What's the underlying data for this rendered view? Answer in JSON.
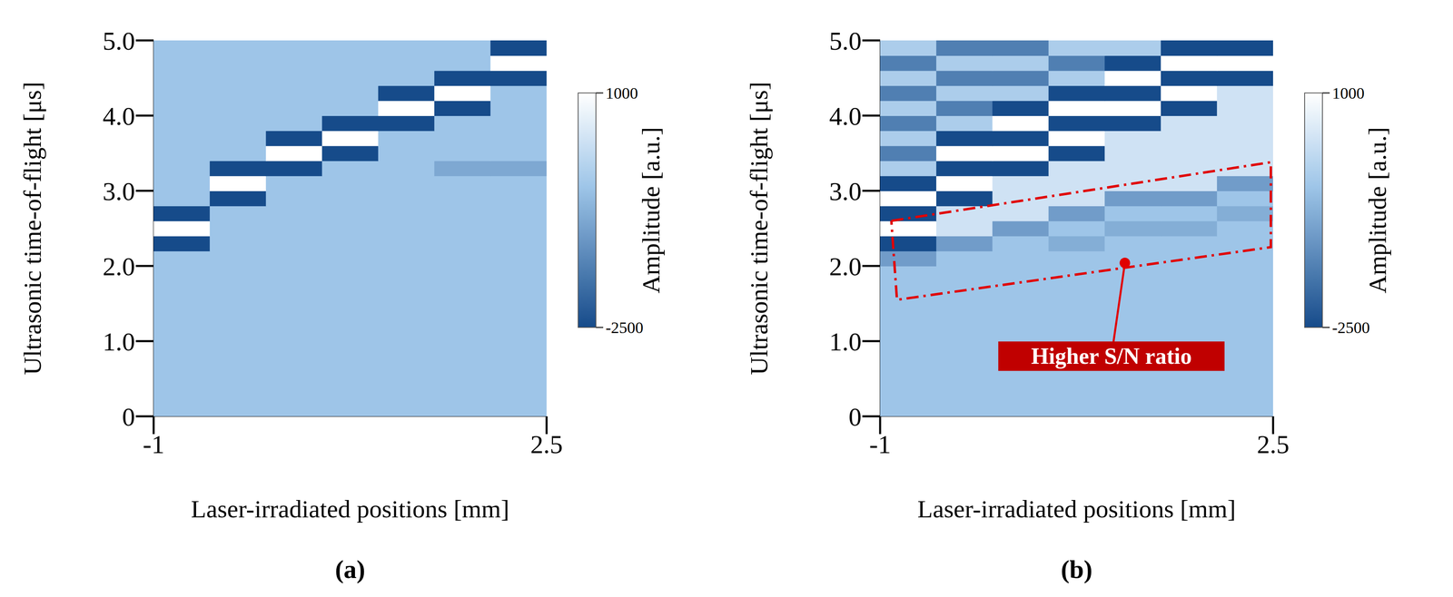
{
  "chart_data": [
    {
      "type": "heatmap",
      "title": "(a)",
      "x_label": "Laser-irradiated positions [mm]",
      "y_label": "Ultrasonic time-of-flight [μs]",
      "xlim": [
        -1,
        2.5
      ],
      "xticks": [
        -1,
        2.5
      ],
      "ylim": [
        0,
        5
      ],
      "yticks": [
        0,
        {
          "value": 1,
          "label": "1.0"
        },
        {
          "value": 2,
          "label": "2.0"
        },
        {
          "value": 3,
          "label": "3.0"
        },
        {
          "value": 4,
          "label": "4.0"
        },
        {
          "value": 5,
          "label": "5.0"
        }
      ],
      "x": [
        -0.75,
        -0.25,
        0.25,
        0.75,
        1.25,
        1.75,
        2.25
      ],
      "y": [
        0.1,
        0.3,
        0.5,
        0.7,
        0.9,
        1.1,
        1.3,
        1.5,
        1.7,
        1.9,
        2.1,
        2.3,
        2.5,
        2.7,
        2.9,
        3.1,
        3.3,
        3.5,
        3.7,
        3.9,
        4.1,
        4.3,
        4.5,
        4.7,
        4.9
      ],
      "cells": [
        [
          -400,
          -400,
          -400,
          -400,
          -400,
          -400,
          -400
        ],
        [
          -400,
          -400,
          -400,
          -400,
          -400,
          -400,
          -400
        ],
        [
          -400,
          -400,
          -400,
          -400,
          -400,
          -400,
          -400
        ],
        [
          -400,
          -400,
          -400,
          -400,
          -400,
          -400,
          -400
        ],
        [
          -400,
          -400,
          -400,
          -400,
          -400,
          -400,
          -400
        ],
        [
          -400,
          -400,
          -400,
          -400,
          -400,
          -400,
          -400
        ],
        [
          -400,
          -400,
          -400,
          -400,
          -400,
          -400,
          -400
        ],
        [
          -400,
          -400,
          -400,
          -400,
          -400,
          -400,
          -400
        ],
        [
          -400,
          -400,
          -400,
          -400,
          -400,
          -400,
          -400
        ],
        [
          -400,
          -400,
          -400,
          -400,
          -400,
          -400,
          -400
        ],
        [
          -400,
          -400,
          -400,
          -400,
          -400,
          -400,
          -400
        ],
        [
          -2500,
          -400,
          -400,
          -400,
          -400,
          -400,
          -400
        ],
        [
          1000,
          -400,
          -400,
          -400,
          -400,
          -400,
          -400
        ],
        [
          -2500,
          -400,
          -400,
          -400,
          -400,
          -400,
          -400
        ],
        [
          -400,
          -2500,
          -400,
          -400,
          -400,
          -400,
          -400
        ],
        [
          -400,
          1000,
          -400,
          -400,
          -400,
          -400,
          -400
        ],
        [
          -400,
          -2500,
          -2500,
          -400,
          -400,
          -900,
          -900
        ],
        [
          -400,
          -400,
          1000,
          -2500,
          -400,
          -400,
          -400
        ],
        [
          -400,
          -400,
          -2500,
          1000,
          -400,
          -400,
          -400
        ],
        [
          -400,
          -400,
          -400,
          -2500,
          -2500,
          -400,
          -400
        ],
        [
          -400,
          -400,
          -400,
          -400,
          1000,
          -2500,
          -400
        ],
        [
          -400,
          -400,
          -400,
          -400,
          -2500,
          1000,
          -400
        ],
        [
          -400,
          -400,
          -400,
          -400,
          -400,
          -2500,
          -2500
        ],
        [
          -400,
          -400,
          -400,
          -400,
          -400,
          -400,
          1000
        ],
        [
          -400,
          -400,
          -400,
          -400,
          -400,
          -400,
          -2500
        ]
      ],
      "colorbar": {
        "label": "Amplitude [a.u.]",
        "range": [
          -2500,
          1000
        ],
        "ticks": [
          -2500,
          1000
        ]
      }
    },
    {
      "type": "heatmap",
      "title": "(b)",
      "x_label": "Laser-irradiated positions [mm]",
      "y_label": "Ultrasonic time-of-flight [μs]",
      "xlim": [
        -1,
        2.5
      ],
      "xticks": [
        -1,
        2.5
      ],
      "ylim": [
        0,
        5
      ],
      "yticks": [
        0,
        {
          "value": 1,
          "label": "1.0"
        },
        {
          "value": 2,
          "label": "2.0"
        },
        {
          "value": 3,
          "label": "3.0"
        },
        {
          "value": 4,
          "label": "4.0"
        },
        {
          "value": 5,
          "label": "5.0"
        }
      ],
      "x": [
        -0.75,
        -0.25,
        0.25,
        0.75,
        1.25,
        1.75,
        2.25
      ],
      "y": [
        0.1,
        0.3,
        0.5,
        0.7,
        0.9,
        1.1,
        1.3,
        1.5,
        1.7,
        1.9,
        2.1,
        2.3,
        2.5,
        2.7,
        2.9,
        3.1,
        3.3,
        3.5,
        3.7,
        3.9,
        4.1,
        4.3,
        4.5,
        4.7,
        4.9
      ],
      "cells": [
        [
          -400,
          -400,
          -400,
          -400,
          -400,
          -400,
          -400
        ],
        [
          -400,
          -400,
          -400,
          -400,
          -400,
          -400,
          -400
        ],
        [
          -400,
          -400,
          -400,
          -400,
          -400,
          -400,
          -400
        ],
        [
          -400,
          -400,
          -400,
          -400,
          -400,
          -400,
          -400
        ],
        [
          -400,
          -400,
          -400,
          -400,
          -400,
          -400,
          -400
        ],
        [
          -400,
          -400,
          -400,
          -400,
          -400,
          -400,
          -400
        ],
        [
          -400,
          -400,
          -400,
          -400,
          -400,
          -400,
          -400
        ],
        [
          -400,
          -400,
          -400,
          -400,
          -400,
          -400,
          -400
        ],
        [
          -400,
          -400,
          -400,
          -400,
          -400,
          -400,
          -400
        ],
        [
          -400,
          -400,
          -400,
          -400,
          -400,
          -400,
          -400
        ],
        [
          -1100,
          -400,
          -400,
          -400,
          -400,
          -400,
          -400
        ],
        [
          -2500,
          -1100,
          -400,
          -800,
          -400,
          -400,
          -400
        ],
        [
          1000,
          300,
          -1100,
          -400,
          -800,
          -800,
          -400
        ],
        [
          -2500,
          300,
          300,
          -1100,
          -400,
          -400,
          -800
        ],
        [
          1000,
          -2500,
          300,
          300,
          -1100,
          -1100,
          -400
        ],
        [
          -2500,
          1000,
          300,
          300,
          300,
          300,
          -1100
        ],
        [
          -200,
          -2500,
          -2500,
          300,
          300,
          300,
          300
        ],
        [
          -1600,
          1000,
          1000,
          -2500,
          300,
          300,
          300
        ],
        [
          -200,
          -2500,
          -2500,
          1000,
          300,
          300,
          300
        ],
        [
          -1600,
          -200,
          1000,
          -2500,
          -2500,
          300,
          300
        ],
        [
          -200,
          -1600,
          -2500,
          1000,
          1000,
          -2500,
          300
        ],
        [
          -1600,
          -200,
          -200,
          -2500,
          -2500,
          1000,
          300
        ],
        [
          -200,
          -1600,
          -1600,
          -200,
          1000,
          -2500,
          -2500
        ],
        [
          -1600,
          -200,
          -200,
          -1600,
          -2500,
          1000,
          1000
        ],
        [
          -200,
          -1600,
          -1600,
          -200,
          -200,
          -2500,
          -2500
        ]
      ],
      "colorbar": {
        "label": "Amplitude [a.u.]",
        "range": [
          -2500,
          1000
        ],
        "ticks": [
          -2500,
          1000
        ]
      },
      "annotation": {
        "text": "Higher S/N ratio",
        "point": [
          1.18,
          2.04
        ],
        "text_position": [
          1.06,
          0.8
        ],
        "box": [
          [
            -0.9,
            2.6
          ],
          [
            2.48,
            3.38
          ],
          [
            2.48,
            2.25
          ],
          [
            -0.85,
            1.55
          ]
        ]
      }
    }
  ]
}
